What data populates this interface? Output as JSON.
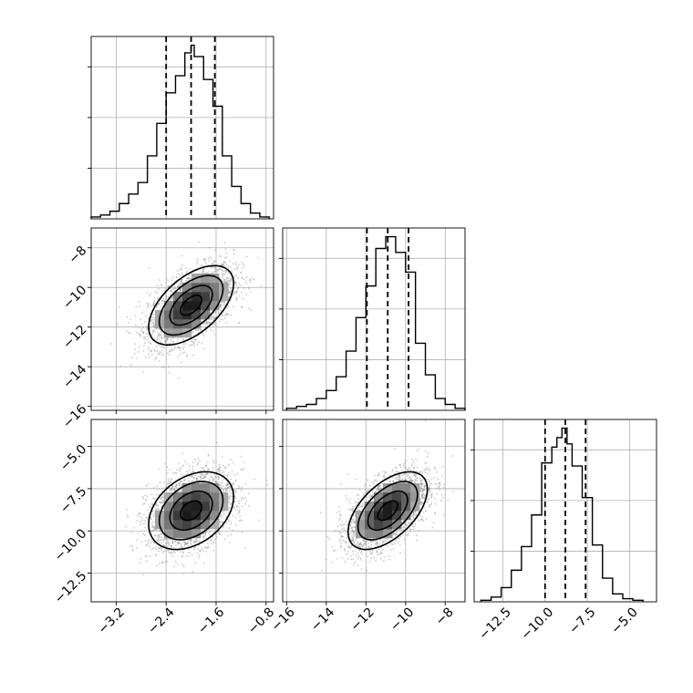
{
  "chart_data": {
    "type": "corner",
    "n_params": 3,
    "params": [
      {
        "name": "",
        "range": [
          -3.6,
          -0.68
        ],
        "ticks": [
          -3.2,
          -2.4,
          -1.6,
          -0.8
        ],
        "tick_labels": [
          "−3.2",
          "−2.4",
          "−1.6",
          "−0.8"
        ],
        "mean": -2.0,
        "sd": 0.34,
        "quantiles": [
          -2.4,
          -2.0,
          -1.62
        ]
      },
      {
        "name": "",
        "range": [
          -16.2,
          -7.0
        ],
        "ticks": [
          -16,
          -14,
          -12,
          -10,
          -8
        ],
        "tick_labels": [
          "−16",
          "−14",
          "−12",
          "−10",
          "−8"
        ],
        "mean": -10.9,
        "sd": 1.0,
        "quantiles": [
          -11.95,
          -10.9,
          -9.85
        ]
      },
      {
        "name": "",
        "range": [
          -14.2,
          -3.4
        ],
        "ticks": [
          -12.5,
          -10.0,
          -7.5,
          -5.0
        ],
        "tick_labels": [
          "−12.5",
          "−10.0",
          "−7.5",
          "−5.0"
        ],
        "mean": -8.8,
        "sd": 1.15,
        "quantiles": [
          -10.0,
          -8.8,
          -7.6
        ]
      }
    ],
    "histograms": [
      {
        "param": 0,
        "bin_edges": [
          -3.6,
          -3.45,
          -3.3,
          -3.15,
          -3.0,
          -2.85,
          -2.7,
          -2.55,
          -2.4,
          -2.25,
          -2.1,
          -2.0,
          -1.95,
          -1.8,
          -1.65,
          -1.5,
          -1.35,
          -1.2,
          -1.05,
          -0.9,
          -0.75
        ],
        "counts": [
          1,
          2,
          4,
          8,
          13,
          19,
          33,
          50,
          66,
          75,
          87,
          91,
          85,
          73,
          59,
          33,
          17,
          8,
          3,
          1
        ]
      },
      {
        "param": 1,
        "bin_edges": [
          -16.0,
          -15.5,
          -15.0,
          -14.5,
          -14.0,
          -13.5,
          -13.0,
          -12.5,
          -12.0,
          -11.5,
          -11.0,
          -10.5,
          -10.0,
          -9.5,
          -9.0,
          -8.5,
          -8.0,
          -7.5,
          -7.0
        ],
        "counts": [
          1,
          2,
          3,
          6,
          10,
          17,
          30,
          47,
          63,
          82,
          88,
          80,
          70,
          34,
          18,
          6,
          3,
          1
        ]
      },
      {
        "param": 2,
        "bin_edges": [
          -13.8,
          -13.2,
          -12.6,
          -12.0,
          -11.4,
          -10.8,
          -10.2,
          -9.6,
          -9.3,
          -9.0,
          -8.7,
          -8.4,
          -7.8,
          -7.2,
          -6.6,
          -6.0,
          -5.4,
          -4.8,
          -4.2
        ],
        "counts": [
          1,
          3,
          9,
          20,
          35,
          55,
          88,
          98,
          104,
          110,
          100,
          86,
          66,
          36,
          15,
          5,
          2,
          1
        ]
      }
    ],
    "pairs": [
      {
        "x_param": 0,
        "y_param": 1,
        "correlation": 0.55
      },
      {
        "x_param": 0,
        "y_param": 2,
        "correlation": 0.35
      },
      {
        "x_param": 1,
        "y_param": 2,
        "correlation": 0.55
      }
    ],
    "contour_levels_sigma": [
      0.5,
      1.0,
      1.5,
      2.0
    ],
    "grid": true
  }
}
